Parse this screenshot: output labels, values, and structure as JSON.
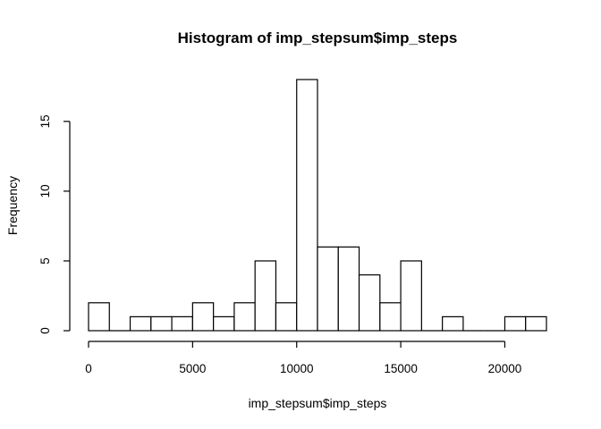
{
  "chart_data": {
    "type": "bar",
    "title": "Histogram of imp_stepsum$imp_steps",
    "xlabel": "imp_stepsum$imp_steps",
    "ylabel": "Frequency",
    "bin_width": 1000,
    "bin_starts": [
      0,
      1000,
      2000,
      3000,
      4000,
      5000,
      6000,
      7000,
      8000,
      9000,
      10000,
      11000,
      12000,
      13000,
      14000,
      15000,
      16000,
      17000,
      18000,
      19000,
      20000,
      21000
    ],
    "values": [
      2,
      0,
      1,
      1,
      1,
      2,
      1,
      2,
      5,
      2,
      18,
      6,
      6,
      4,
      2,
      5,
      0,
      1,
      0,
      0,
      1,
      1
    ],
    "xlim": [
      0,
      22000
    ],
    "ylim": [
      0,
      18
    ],
    "x_ticks": [
      0,
      5000,
      10000,
      15000,
      20000
    ],
    "x_tick_labels": [
      "0",
      "5000",
      "10000",
      "15000",
      "20000"
    ],
    "y_ticks": [
      0,
      5,
      10,
      15
    ],
    "y_tick_labels": [
      "0",
      "5",
      "10",
      "15"
    ],
    "grid": false,
    "legend": "none"
  }
}
